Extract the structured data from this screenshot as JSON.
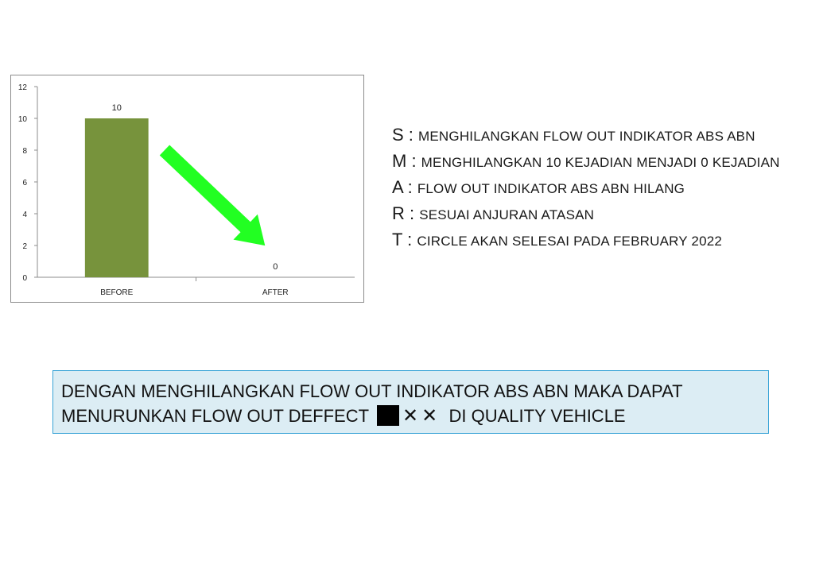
{
  "chart_data": {
    "type": "bar",
    "categories": [
      "BEFORE",
      "AFTER"
    ],
    "values": [
      10,
      0
    ],
    "data_labels": [
      "10",
      "0"
    ],
    "ylim": [
      0,
      12
    ],
    "yticks": [
      "0",
      "2",
      "4",
      "6",
      "8",
      "10",
      "12"
    ],
    "bar_color": "#77933c",
    "grid": false,
    "annotation": "green-down-arrow",
    "arrow_color": "#22ff22"
  },
  "smart": [
    {
      "letter": "S",
      "text": "MENGHILANGKAN FLOW OUT INDIKATOR ABS ABN"
    },
    {
      "letter": "M",
      "text": "MENGHILANGKAN 10 KEJADIAN MENJADI 0 KEJADIAN"
    },
    {
      "letter": "A",
      "text": "FLOW OUT INDIKATOR ABS ABN HILANG"
    },
    {
      "letter": "R",
      "text": "SESUAI ANJURAN ATASAN"
    },
    {
      "letter": "T",
      "text": "CIRCLE AKAN SELESAI PADA FEBRUARY 2022"
    }
  ],
  "conclusion": {
    "line1": "DENGAN MENGHILANGKAN FLOW OUT INDIKATOR ABS ABN MAKA DAPAT",
    "line2_before": "MENURUNKAN FLOW OUT DEFFECT",
    "censor_marks": [
      "✕",
      "✕"
    ],
    "line2_after": "DI QUALITY VEHICLE"
  }
}
